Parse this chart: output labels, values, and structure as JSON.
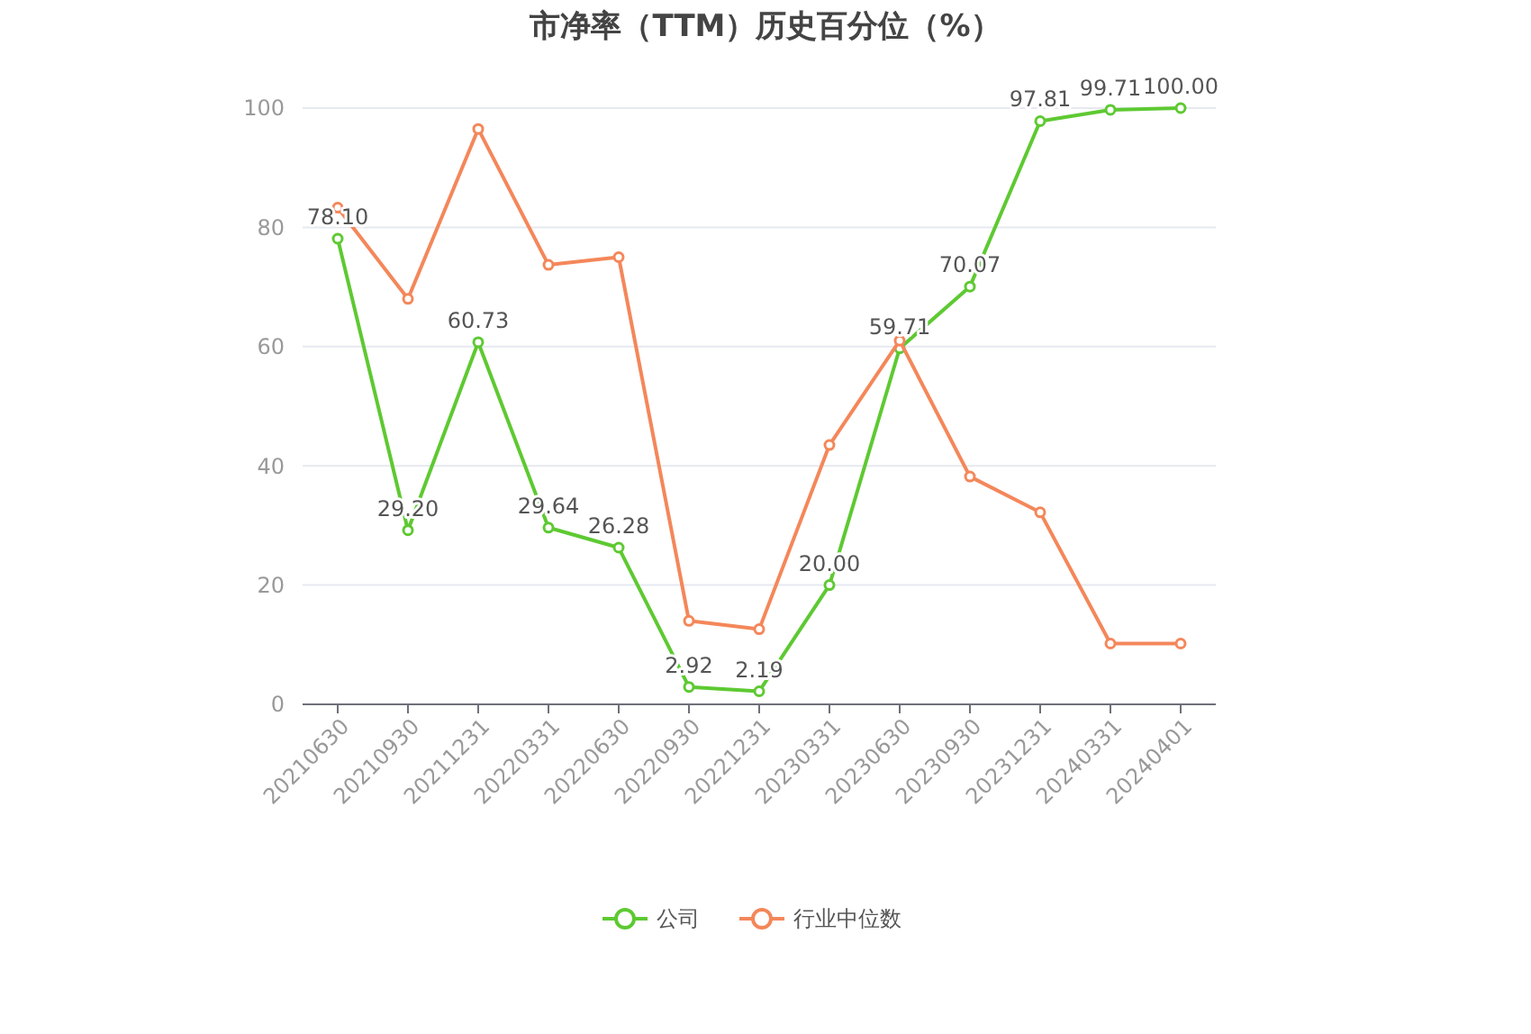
{
  "chart_data": {
    "type": "line",
    "title": "市净率（TTM）历史百分位（%）",
    "categories": [
      "20210630",
      "20210930",
      "20211231",
      "20220331",
      "20220630",
      "20220930",
      "20221231",
      "20230331",
      "20230630",
      "20230930",
      "20231231",
      "20240331",
      "20240401"
    ],
    "series": [
      {
        "name": "公司",
        "color": "#5ec932",
        "values": [
          78.1,
          29.2,
          60.73,
          29.64,
          26.28,
          2.92,
          2.19,
          20.0,
          59.71,
          70.07,
          97.81,
          99.71,
          100.0
        ],
        "value_labels": [
          "78.10",
          "29.20",
          "60.73",
          "29.64",
          "26.28",
          "2.92",
          "2.19",
          "20.00",
          "59.71",
          "70.07",
          "97.81",
          "99.71",
          "100.00"
        ]
      },
      {
        "name": "行业中位数",
        "color": "#f4875a",
        "values": [
          83.3,
          68,
          96.5,
          73.7,
          75,
          14,
          12.6,
          43.5,
          61,
          38.2,
          32.2,
          10.2,
          10.2
        ]
      }
    ],
    "ylim": [
      0,
      100
    ],
    "yticks": [
      0,
      20,
      40,
      60,
      80,
      100
    ],
    "grid": "y",
    "legend": "bottom",
    "marker": "circle",
    "line_style": "solid"
  }
}
